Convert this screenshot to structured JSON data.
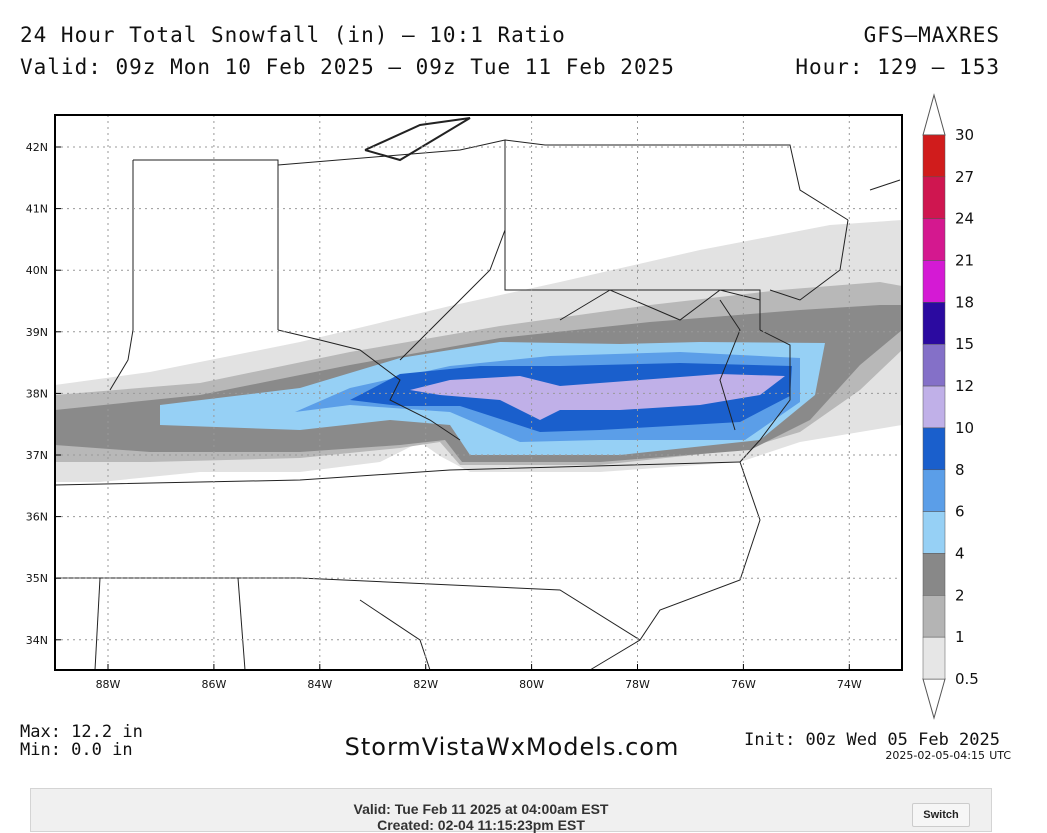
{
  "header": {
    "title": "24 Hour Total Snowfall (in) — 10:1 Ratio",
    "model": "GFS—MAXRES",
    "valid": "Valid: 09z Mon 10 Feb 2025 — 09z Tue 11 Feb 2025",
    "hour": "Hour: 129 — 153"
  },
  "map": {
    "lat_labels": [
      "42N",
      "41N",
      "40N",
      "39N",
      "38N",
      "37N",
      "36N",
      "35N",
      "34N"
    ],
    "lon_labels": [
      "88W",
      "86W",
      "84W",
      "82W",
      "80W",
      "78W",
      "76W",
      "74W"
    ]
  },
  "colorbar": {
    "labels": [
      "30",
      "27",
      "24",
      "21",
      "18",
      "15",
      "12",
      "10",
      "8",
      "6",
      "4",
      "2",
      "1",
      "0.5"
    ],
    "colors": [
      "#d01c1c",
      "#cf1650",
      "#d4188f",
      "#d41ad4",
      "#2b0aa0",
      "#8470c8",
      "#c0b0e8",
      "#1a5fcc",
      "#5b9ee8",
      "#96d0f5",
      "#888888",
      "#b4b4b4",
      "#e6e6e6"
    ]
  },
  "footer": {
    "max": "Max: 12.2 in",
    "min": "Min: 0.0 in",
    "site": "StormVistaWxModels.com",
    "init": "Init: 00z Wed 05 Feb 2025",
    "timestamp": "2025-02-05-04:15",
    "timezone": "UTC"
  },
  "bar": {
    "valid": "Valid: Tue Feb 11 2025 at 04:00am EST",
    "created": "Created: 02-04 11:15:23pm EST",
    "button": "Switch"
  }
}
